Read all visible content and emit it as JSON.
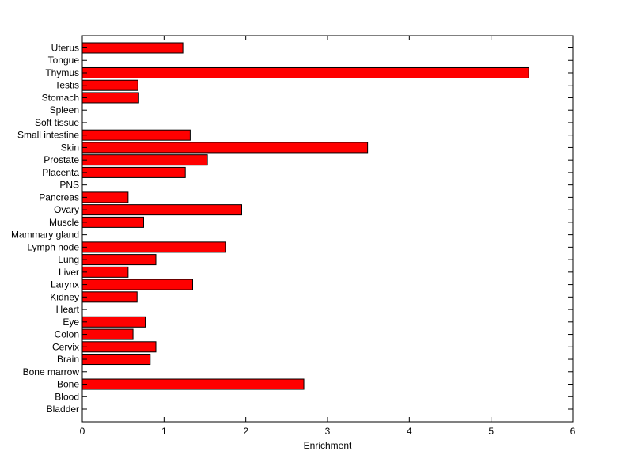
{
  "chart_data": {
    "type": "bar",
    "orientation": "horizontal",
    "categories": [
      "Bladder",
      "Blood",
      "Bone",
      "Bone marrow",
      "Brain",
      "Cervix",
      "Colon",
      "Eye",
      "Heart",
      "Kidney",
      "Larynx",
      "Liver",
      "Lung",
      "Lymph node",
      "Mammary gland",
      "Muscle",
      "Ovary",
      "Pancreas",
      "PNS",
      "Placenta",
      "Prostate",
      "Skin",
      "Small intestine",
      "Soft tissue",
      "Spleen",
      "Stomach",
      "Testis",
      "Thymus",
      "Tongue",
      "Uterus"
    ],
    "values": [
      0,
      0,
      2.71,
      0,
      0.83,
      0.9,
      0.62,
      0.77,
      0,
      0.67,
      1.35,
      0.56,
      0.9,
      1.75,
      0,
      0.75,
      1.95,
      0.56,
      0,
      1.26,
      1.53,
      3.49,
      1.32,
      0,
      0,
      0.69,
      0.68,
      5.46,
      0,
      1.23
    ],
    "xlabel": "Enrichment",
    "ylabel": "",
    "title": "",
    "xlim": [
      0,
      6
    ],
    "xticks": [
      0,
      1,
      2,
      3,
      4,
      5,
      6
    ],
    "bar_color": "#ff0000",
    "edge_color": "#000000",
    "grid": false
  }
}
